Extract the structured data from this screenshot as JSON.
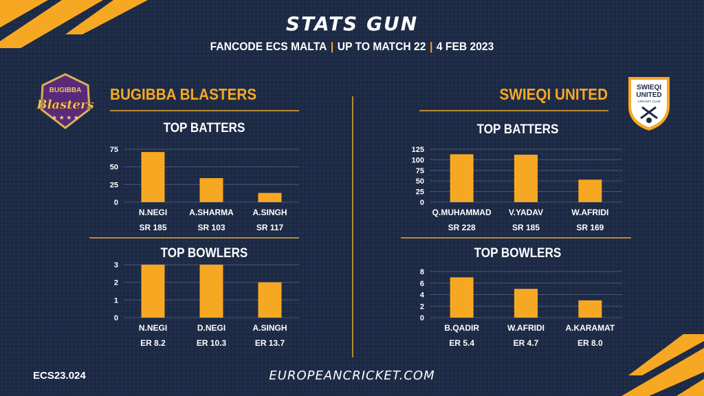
{
  "header": {
    "title": "STATS GUN",
    "subtitle_parts": [
      "FANCODE ECS MALTA",
      "UP TO MATCH  22",
      "4 FEB 2023"
    ]
  },
  "teams": [
    {
      "name": "BUGIBBA BLASTERS",
      "logo_text_top": "BUGIBBA",
      "logo_text_main": "Blasters"
    },
    {
      "name": "SWIEQI UNITED",
      "logo_text_top": "SWIEQI",
      "logo_text_mid": "UNITED",
      "logo_text_small": "CRICKET CLUB"
    }
  ],
  "colors": {
    "accent": "#f7a823",
    "background": "#1d2a45",
    "divider": "#b88a35",
    "gridline": "#4a5672"
  },
  "footer": {
    "code": "ECS23.024",
    "url": "EUROPEANCRICKET.COM"
  },
  "chart_data": [
    {
      "id": "bb_batters",
      "type": "bar",
      "title": "TOP BATTERS",
      "categories": [
        "N.NEGI",
        "A.SHARMA",
        "A.SINGH"
      ],
      "sublabels": [
        "SR 185",
        "SR 103",
        "SR 117"
      ],
      "values": [
        71,
        34,
        13
      ],
      "ylim": [
        0,
        75
      ],
      "yticks": [
        0,
        25,
        50,
        75
      ],
      "grid": true
    },
    {
      "id": "bb_bowlers",
      "type": "bar",
      "title": "TOP BOWLERS",
      "categories": [
        "N.NEGI",
        "D.NEGI",
        "A.SINGH"
      ],
      "sublabels": [
        "ER 8.2",
        "ER 10.3",
        "ER 13.7"
      ],
      "values": [
        3,
        3,
        2
      ],
      "ylim": [
        0,
        3
      ],
      "yticks": [
        0,
        1,
        2,
        3
      ],
      "grid": true
    },
    {
      "id": "su_batters",
      "type": "bar",
      "title": "TOP BATTERS",
      "categories": [
        "Q.MUHAMMAD",
        "V.YADAV",
        "W.AFRIDI"
      ],
      "sublabels": [
        "SR 228",
        "SR 185",
        "SR 169"
      ],
      "values": [
        113,
        112,
        53
      ],
      "ylim": [
        0,
        125
      ],
      "yticks": [
        0,
        25,
        50,
        75,
        100,
        125
      ],
      "grid": true
    },
    {
      "id": "su_bowlers",
      "type": "bar",
      "title": "TOP BOWLERS",
      "categories": [
        "B.QADIR",
        "W.AFRIDI",
        "A.KARAMAT"
      ],
      "sublabels": [
        "ER 5.4",
        "ER 4.7",
        "ER 8.0"
      ],
      "values": [
        7,
        5,
        3
      ],
      "ylim": [
        0,
        8
      ],
      "yticks": [
        0,
        2,
        4,
        6,
        8
      ],
      "grid": true
    }
  ]
}
